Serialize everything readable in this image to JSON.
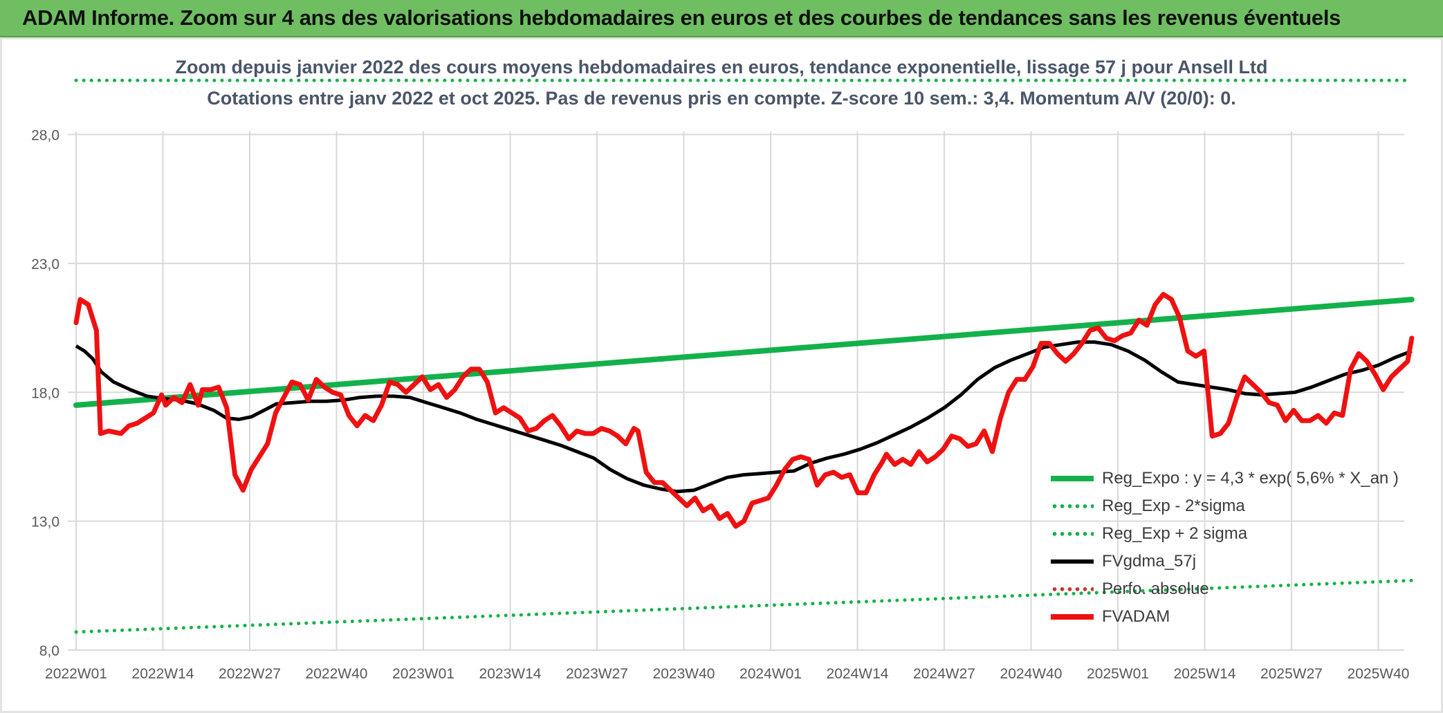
{
  "header": {
    "title": "ADAM Informe. Zoom sur 4 ans des valorisations hebdomadaires en euros et des courbes de tendances sans les revenus éventuels"
  },
  "chart_data": {
    "type": "line",
    "title": "Zoom depuis janvier 2022 des cours moyens hebdomadaires en euros, tendance exponentielle, lissage 57 j pour Ansell Ltd",
    "subtitle": "Cotations entre janv 2022 et oct 2025. Pas de revenus pris en compte. Z-score 10 sem.: 3,4. Momentum A/V (20/0): 0.",
    "xlabel": "",
    "ylabel": "",
    "ylim": [
      8,
      30
    ],
    "yticks": [
      8,
      13,
      18,
      23,
      28
    ],
    "ytick_labels": [
      "8,0",
      "13,0",
      "18,0",
      "23,0",
      "28,0"
    ],
    "x_tick_labels": [
      "2022W01",
      "2022W14",
      "2022W27",
      "2022W40",
      "2023W01",
      "2023W14",
      "2023W27",
      "2023W40",
      "2024W01",
      "2024W14",
      "2024W27",
      "2024W40",
      "2025W01",
      "2025W14",
      "2025W27",
      "2025W40"
    ],
    "x_range_weeks": [
      0,
      200
    ],
    "grid": true,
    "legend_position": "bottom-right",
    "colors": {
      "reg_expo": "#13b14b",
      "sigma": "#13b14b",
      "fvgdma": "#000000",
      "fvadam": "#ee1111",
      "perfo": "#c0392b",
      "grid": "#d9d9d9"
    },
    "series": [
      {
        "name": "Reg_Expo : y = 4,3 * exp( 5,6% *  X_an )",
        "style": "solid-thick",
        "points": [
          [
            0,
            17.5
          ],
          [
            200,
            21.6
          ]
        ]
      },
      {
        "name": "Reg_Exp - 2*sigma",
        "style": "dotted",
        "points": [
          [
            0,
            8.7
          ],
          [
            200,
            10.7
          ]
        ]
      },
      {
        "name": "Reg_Exp + 2 sigma",
        "style": "dotted",
        "points": [
          [
            0,
            30.1
          ],
          [
            200,
            30.1
          ]
        ]
      },
      {
        "name": "FVgdma_57j",
        "style": "solid",
        "points": [
          [
            0,
            19.8
          ],
          [
            2,
            19.6
          ],
          [
            4,
            19.3
          ],
          [
            6,
            18.8
          ],
          [
            9,
            18.4
          ],
          [
            13,
            18.1
          ],
          [
            17,
            17.85
          ],
          [
            21,
            17.75
          ],
          [
            25,
            17.7
          ],
          [
            29,
            17.55
          ],
          [
            33,
            17.3
          ],
          [
            36,
            17.0
          ],
          [
            39,
            16.95
          ],
          [
            42,
            17.05
          ],
          [
            45,
            17.3
          ],
          [
            48,
            17.55
          ],
          [
            52,
            17.6
          ],
          [
            56,
            17.65
          ],
          [
            60,
            17.65
          ],
          [
            64,
            17.7
          ],
          [
            68,
            17.8
          ],
          [
            72,
            17.85
          ],
          [
            76,
            17.85
          ],
          [
            80,
            17.8
          ],
          [
            84,
            17.6
          ],
          [
            88,
            17.4
          ],
          [
            92,
            17.2
          ],
          [
            96,
            16.95
          ],
          [
            100,
            16.75
          ],
          [
            104,
            16.55
          ],
          [
            108,
            16.35
          ],
          [
            112,
            16.15
          ],
          [
            116,
            15.95
          ],
          [
            120,
            15.7
          ],
          [
            124,
            15.45
          ],
          [
            128,
            15.0
          ],
          [
            132,
            14.65
          ],
          [
            136,
            14.4
          ],
          [
            140,
            14.25
          ],
          [
            144,
            14.15
          ],
          [
            148,
            14.2
          ],
          [
            152,
            14.45
          ],
          [
            156,
            14.7
          ],
          [
            160,
            14.8
          ],
          [
            164,
            14.85
          ],
          [
            168,
            14.9
          ],
          [
            172,
            14.95
          ],
          [
            176,
            15.25
          ],
          [
            180,
            15.45
          ],
          [
            184,
            15.6
          ],
          [
            188,
            15.8
          ],
          [
            192,
            16.05
          ],
          [
            196,
            16.35
          ],
          [
            200,
            16.65
          ],
          [
            204,
            17.0
          ],
          [
            208,
            17.4
          ],
          [
            212,
            17.9
          ],
          [
            216,
            18.5
          ],
          [
            220,
            18.95
          ],
          [
            224,
            19.25
          ],
          [
            228,
            19.5
          ],
          [
            232,
            19.75
          ],
          [
            236,
            19.85
          ],
          [
            240,
            19.95
          ],
          [
            244,
            19.95
          ],
          [
            248,
            19.85
          ],
          [
            252,
            19.6
          ],
          [
            256,
            19.25
          ],
          [
            260,
            18.8
          ],
          [
            264,
            18.4
          ],
          [
            268,
            18.3
          ],
          [
            272,
            18.2
          ],
          [
            276,
            18.1
          ],
          [
            280,
            17.95
          ],
          [
            284,
            17.9
          ],
          [
            288,
            17.95
          ],
          [
            292,
            18.0
          ],
          [
            296,
            18.2
          ],
          [
            300,
            18.45
          ],
          [
            304,
            18.7
          ],
          [
            308,
            18.85
          ],
          [
            312,
            19.05
          ],
          [
            316,
            19.35
          ],
          [
            320,
            19.6
          ]
        ]
      },
      {
        "name": "Perfo. absolue",
        "style": "dotted-dark",
        "points": []
      },
      {
        "name": "FVADAM",
        "style": "solid-thick",
        "points": [
          [
            0,
            20.7
          ],
          [
            1,
            21.6
          ],
          [
            3,
            21.4
          ],
          [
            5,
            20.4
          ],
          [
            6,
            16.4
          ],
          [
            8,
            16.5
          ],
          [
            11,
            16.4
          ],
          [
            13,
            16.7
          ],
          [
            15,
            16.8
          ],
          [
            17,
            17.0
          ],
          [
            19,
            17.2
          ],
          [
            21,
            17.9
          ],
          [
            22,
            17.5
          ],
          [
            24,
            17.8
          ],
          [
            26,
            17.6
          ],
          [
            28,
            18.3
          ],
          [
            30,
            17.5
          ],
          [
            31,
            18.1
          ],
          [
            33,
            18.1
          ],
          [
            35,
            18.2
          ],
          [
            37,
            17.4
          ],
          [
            39,
            14.8
          ],
          [
            41,
            14.2
          ],
          [
            43,
            15.0
          ],
          [
            45,
            15.5
          ],
          [
            47,
            16.0
          ],
          [
            49,
            17.2
          ],
          [
            51,
            17.8
          ],
          [
            53,
            18.4
          ],
          [
            55,
            18.3
          ],
          [
            57,
            17.7
          ],
          [
            59,
            18.5
          ],
          [
            61,
            18.2
          ],
          [
            63,
            18.0
          ],
          [
            65,
            17.9
          ],
          [
            67,
            17.1
          ],
          [
            69,
            16.7
          ],
          [
            71,
            17.1
          ],
          [
            73,
            16.9
          ],
          [
            75,
            17.5
          ],
          [
            77,
            18.4
          ],
          [
            79,
            18.3
          ],
          [
            81,
            18.0
          ],
          [
            83,
            18.3
          ],
          [
            85,
            18.6
          ],
          [
            87,
            18.1
          ],
          [
            89,
            18.3
          ],
          [
            91,
            17.8
          ],
          [
            93,
            18.1
          ],
          [
            95,
            18.6
          ],
          [
            97,
            18.9
          ],
          [
            99,
            18.9
          ],
          [
            101,
            18.4
          ],
          [
            103,
            17.2
          ],
          [
            105,
            17.4
          ],
          [
            107,
            17.2
          ],
          [
            109,
            17.0
          ],
          [
            111,
            16.5
          ],
          [
            113,
            16.6
          ],
          [
            115,
            16.9
          ],
          [
            117,
            17.1
          ],
          [
            119,
            16.7
          ],
          [
            121,
            16.2
          ],
          [
            123,
            16.5
          ],
          [
            125,
            16.4
          ],
          [
            127,
            16.4
          ],
          [
            129,
            16.6
          ],
          [
            131,
            16.5
          ],
          [
            133,
            16.3
          ],
          [
            135,
            16.0
          ],
          [
            137,
            16.6
          ],
          [
            138,
            16.5
          ],
          [
            140,
            14.9
          ],
          [
            142,
            14.5
          ],
          [
            144,
            14.5
          ],
          [
            146,
            14.2
          ],
          [
            148,
            13.9
          ],
          [
            150,
            13.6
          ],
          [
            152,
            13.9
          ],
          [
            154,
            13.4
          ],
          [
            156,
            13.6
          ],
          [
            158,
            13.1
          ],
          [
            160,
            13.3
          ],
          [
            162,
            12.8
          ],
          [
            164,
            13.0
          ],
          [
            166,
            13.7
          ],
          [
            168,
            13.8
          ],
          [
            170,
            13.9
          ],
          [
            172,
            14.4
          ],
          [
            174,
            15.0
          ],
          [
            176,
            15.4
          ],
          [
            178,
            15.5
          ],
          [
            180,
            15.4
          ],
          [
            182,
            14.4
          ],
          [
            184,
            14.8
          ],
          [
            186,
            14.9
          ],
          [
            188,
            14.7
          ],
          [
            190,
            14.8
          ],
          [
            192,
            14.1
          ],
          [
            194,
            14.1
          ],
          [
            196,
            14.8
          ],
          [
            198,
            15.3
          ],
          [
            199,
            15.6
          ],
          [
            201,
            15.2
          ],
          [
            203,
            15.4
          ],
          [
            205,
            15.2
          ],
          [
            207,
            15.7
          ],
          [
            209,
            15.3
          ],
          [
            211,
            15.5
          ],
          [
            213,
            15.8
          ],
          [
            215,
            16.3
          ],
          [
            217,
            16.2
          ],
          [
            219,
            15.9
          ],
          [
            221,
            16.0
          ],
          [
            223,
            16.5
          ],
          [
            225,
            15.7
          ],
          [
            227,
            17.0
          ],
          [
            229,
            18.0
          ],
          [
            231,
            18.5
          ],
          [
            233,
            18.5
          ],
          [
            235,
            19.0
          ],
          [
            237,
            19.9
          ],
          [
            239,
            19.9
          ],
          [
            241,
            19.5
          ],
          [
            243,
            19.2
          ],
          [
            245,
            19.5
          ],
          [
            247,
            19.9
          ],
          [
            249,
            20.4
          ],
          [
            251,
            20.5
          ],
          [
            253,
            20.1
          ],
          [
            255,
            20.0
          ],
          [
            257,
            20.2
          ],
          [
            259,
            20.3
          ],
          [
            261,
            20.8
          ],
          [
            263,
            20.6
          ],
          [
            265,
            21.4
          ],
          [
            267,
            21.8
          ],
          [
            269,
            21.6
          ],
          [
            271,
            20.9
          ],
          [
            273,
            19.6
          ],
          [
            275,
            19.4
          ],
          [
            277,
            19.6
          ],
          [
            279,
            16.3
          ],
          [
            281,
            16.4
          ],
          [
            283,
            16.8
          ],
          [
            285,
            17.8
          ],
          [
            287,
            18.6
          ],
          [
            289,
            18.3
          ],
          [
            291,
            18.0
          ],
          [
            293,
            17.6
          ],
          [
            295,
            17.5
          ],
          [
            297,
            16.9
          ],
          [
            299,
            17.3
          ],
          [
            301,
            16.9
          ],
          [
            303,
            16.9
          ],
          [
            305,
            17.1
          ],
          [
            307,
            16.8
          ],
          [
            309,
            17.2
          ],
          [
            311,
            17.1
          ],
          [
            313,
            18.9
          ],
          [
            315,
            19.5
          ],
          [
            317,
            19.2
          ],
          [
            319,
            18.7
          ],
          [
            321,
            18.1
          ],
          [
            323,
            18.6
          ],
          [
            325,
            18.9
          ],
          [
            327,
            19.2
          ],
          [
            328,
            20.1
          ]
        ]
      }
    ]
  }
}
